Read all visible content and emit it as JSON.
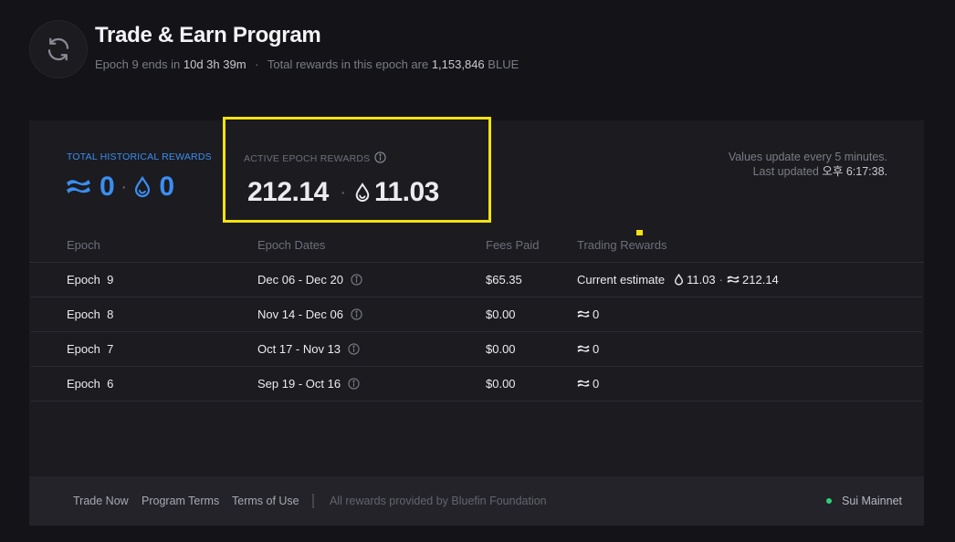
{
  "header": {
    "title": "Trade & Earn Program",
    "subtitle_prefix": "Epoch 9 ends in",
    "time_remaining": "10d 3h 39m",
    "dot": "·",
    "rewards_prefix": "Total rewards in this epoch are",
    "total_rewards": "1,153,846",
    "rewards_token": "BLUE"
  },
  "summary": {
    "total_label": "TOTAL HISTORICAL REWARDS",
    "total_blue": "0",
    "total_sui": "0",
    "active_label": "ACTIVE EPOCH REWARDS",
    "active_blue": "212.14",
    "active_sui": "11.03",
    "separator": "·",
    "update_note": "Values update every 5 minutes.",
    "last_updated_label": "Last updated",
    "last_updated_value": "오후 6:17:38."
  },
  "table": {
    "headers": [
      "Epoch",
      "Epoch Dates",
      "Fees Paid",
      "Trading Rewards"
    ],
    "rows": [
      {
        "epoch": "Epoch  9",
        "dates": "Dec 06 - Dec 20",
        "fees": "$65.35",
        "reward_label": "Current estimate",
        "sui": "11.03",
        "blue": "212.14"
      },
      {
        "epoch": "Epoch  8",
        "dates": "Nov 14 - Dec 06",
        "fees": "$0.00",
        "blue": "0"
      },
      {
        "epoch": "Epoch  7",
        "dates": "Oct 17 - Nov 13",
        "fees": "$0.00",
        "blue": "0"
      },
      {
        "epoch": "Epoch  6",
        "dates": "Sep 19 - Oct 16",
        "fees": "$0.00",
        "blue": "0"
      }
    ]
  },
  "footer": {
    "links": [
      "Trade Now",
      "Program Terms",
      "Terms of Use"
    ],
    "credits": "All rewards provided by Bluefin Foundation",
    "network": "Sui Mainnet"
  },
  "colors": {
    "accent_blue": "#3b8ef0",
    "highlight_yellow": "#f4e20f",
    "status_green": "#2bd17a",
    "background": "#141418",
    "card": "#1b1b20"
  },
  "icons": {
    "header": "refresh-icon",
    "blue_token": "bluefin-waves-icon",
    "sui_token": "sui-drop-icon",
    "info": "info-icon"
  }
}
